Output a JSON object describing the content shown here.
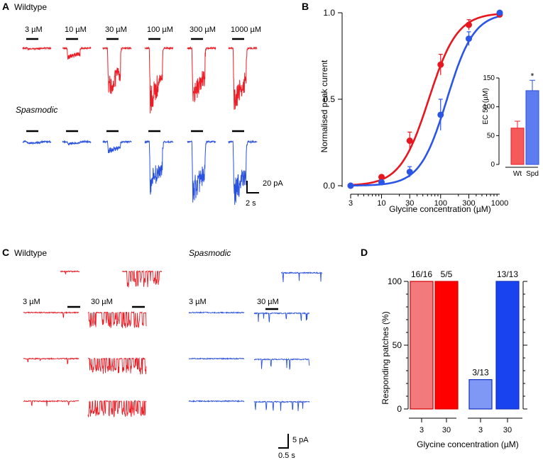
{
  "panels": {
    "A": {
      "label": "A",
      "wildtype_title": "Wildtype",
      "mutant_title": "Spasmodic",
      "concentrations": [
        "3 µM",
        "10 µM",
        "30 µM",
        "100 µM",
        "300 µM",
        "1000 µM"
      ],
      "wildtype_relative_amplitude": [
        0.03,
        0.35,
        1.5,
        1.9,
        1.75,
        1.95
      ],
      "mutant_relative_amplitude": [
        0.05,
        0.08,
        0.35,
        1.55,
        1.9,
        2.0
      ],
      "scale_y": "20 pA",
      "scale_x": "2 s"
    },
    "B": {
      "label": "B",
      "inset": {
        "ylabel": "EC 50 (µM)",
        "ymax": 150,
        "yticks": [
          "0",
          "50",
          "100",
          "150"
        ],
        "categories": [
          "Wt",
          "Spd"
        ],
        "values": [
          63,
          128
        ],
        "errors": [
          12,
          18
        ],
        "significance": "*"
      }
    },
    "C": {
      "label": "C",
      "wildtype_title": "Wildtype",
      "mutant_title": "Spasmodic",
      "conc_labels": [
        "3 µM",
        "30 µM",
        "3 µM",
        "30 µM"
      ],
      "scale_y": "5 pA",
      "scale_x": "0.5 s"
    }
  },
  "chart_data": [
    {
      "panel": "B",
      "type": "line",
      "title": "",
      "xlabel": "Glycine concentration (µM)",
      "ylabel": "Normalised peak current",
      "xscale": "log",
      "xlim": [
        3,
        1000
      ],
      "ylim": [
        0,
        1
      ],
      "x_ticks": [
        "3",
        "10",
        "30",
        "100",
        "300",
        "1000"
      ],
      "y_ticks": [
        "0.0",
        "0.5",
        "1.0"
      ],
      "x": [
        3,
        10,
        30,
        100,
        300,
        1000
      ],
      "series": [
        {
          "name": "Wildtype",
          "color": "#e8161e",
          "values": [
            0.0,
            0.05,
            0.26,
            0.7,
            0.93,
            0.99
          ],
          "errors": [
            0.0,
            0.0,
            0.05,
            0.06,
            0.03,
            0.0
          ],
          "ec50": 63,
          "hill": 1.8
        },
        {
          "name": "Spasmodic",
          "color": "#2b55e6",
          "values": [
            0.0,
            0.02,
            0.08,
            0.41,
            0.85,
            1.0
          ],
          "errors": [
            0.0,
            0.0,
            0.03,
            0.09,
            0.04,
            0.0
          ],
          "ec50": 128,
          "hill": 1.9
        }
      ]
    },
    {
      "panel": "D",
      "type": "bar",
      "title": "",
      "xlabel": "Glycine concentration (µM)",
      "ylabel": "Responding patches (%)",
      "ylim": [
        0,
        100
      ],
      "y_ticks": [
        "0",
        "50",
        "100"
      ],
      "categories": [
        "3",
        "30",
        "3",
        "30"
      ],
      "values": [
        100,
        100,
        23,
        100
      ],
      "bar_labels": [
        "16/16",
        "5/5",
        "3/13",
        "13/13"
      ],
      "colors": [
        "#f27a7d",
        "#ff0000",
        "#7f97f5",
        "#1a43f0"
      ],
      "groups": [
        "Wildtype",
        "Wildtype",
        "Spasmodic",
        "Spasmodic"
      ]
    }
  ],
  "colors": {
    "wildtype": "#ee1c25",
    "mutant": "#2a52e0"
  }
}
